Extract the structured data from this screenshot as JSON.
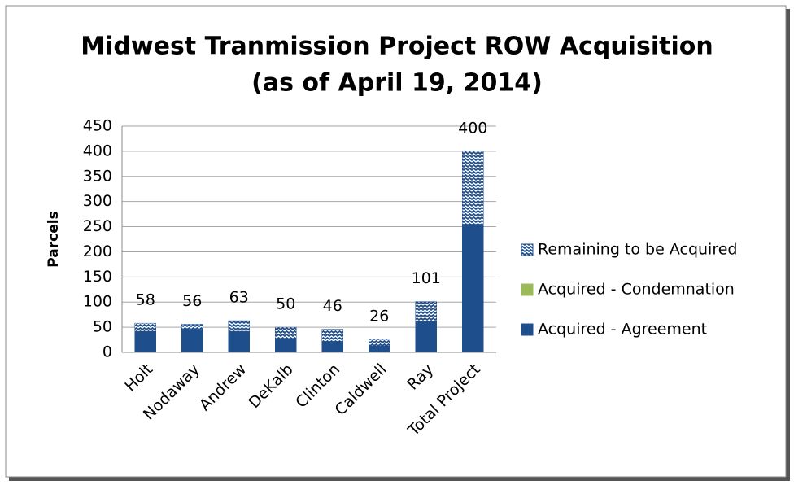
{
  "chart_data": {
    "type": "stacked_bar",
    "title": "Midwest Tranmission Project ROW Acquisition",
    "subtitle": "(as of April 19, 2014)",
    "y_label": "Parcels",
    "categories": [
      "Holt",
      "Nodaway",
      "Andrew",
      "DeKalb",
      "Clinton",
      "Caldwell",
      "Ray",
      "Total Project"
    ],
    "series": [
      {
        "name": "Acquired - Agreement",
        "color": "#1f4e8c",
        "values": [
          42,
          46,
          42,
          28,
          22,
          13,
          62,
          255
        ]
      },
      {
        "name": "Acquired - Condemnation",
        "color": "#9bbb59",
        "values": [
          0,
          0,
          0,
          0,
          0,
          0,
          0,
          0
        ]
      },
      {
        "name": "Remaining to be Acquired",
        "color": "#1f4e8c",
        "pattern": "zigzag",
        "values": [
          16,
          10,
          21,
          22,
          24,
          13,
          39,
          145
        ]
      }
    ],
    "totals": [
      58,
      56,
      63,
      50,
      46,
      26,
      101,
      400
    ],
    "ylim": [
      0,
      450
    ],
    "yticks": [
      0,
      50,
      100,
      150,
      200,
      250,
      300,
      350,
      400,
      450
    ],
    "grid": true,
    "legend": "right"
  }
}
